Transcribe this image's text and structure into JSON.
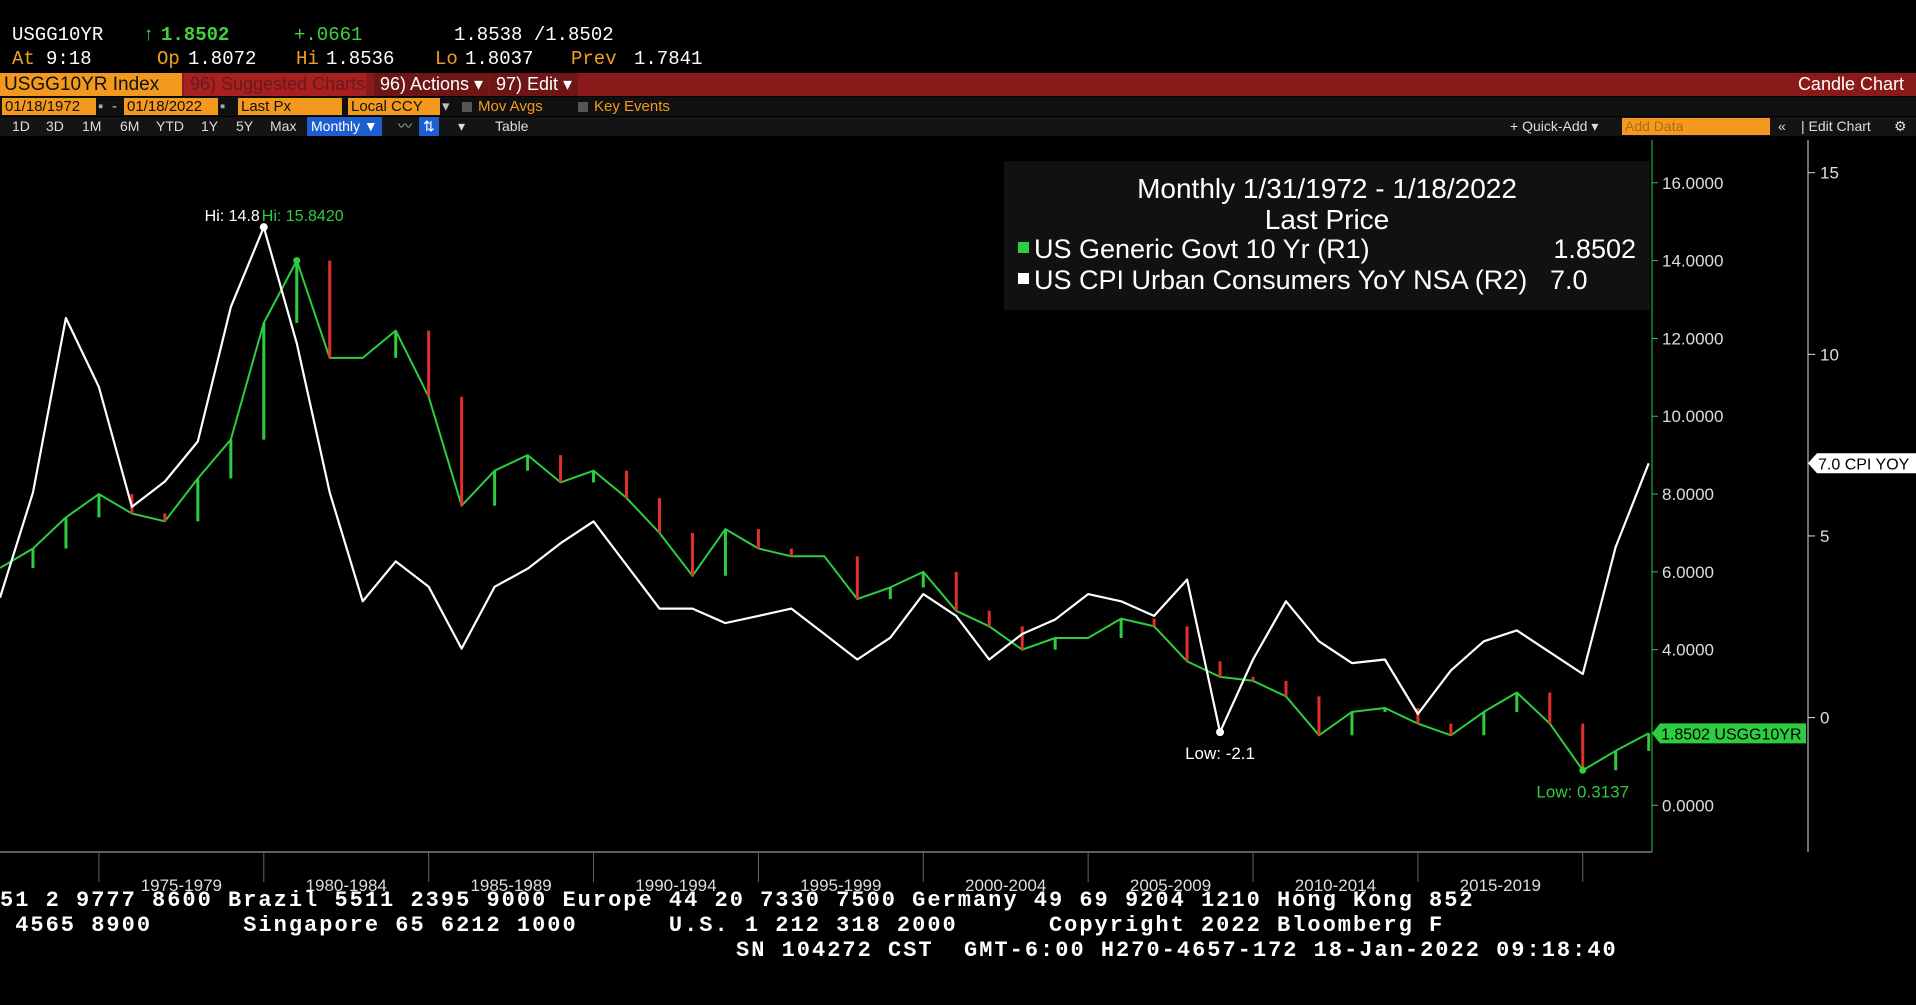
{
  "quote": {
    "ticker": "USGG10YR",
    "arrow": "↑",
    "last": "1.8502",
    "change": "+.0661",
    "bidask": "1.8538 /1.8502",
    "at_label": "At",
    "at_time": "9:18",
    "op_label": "Op",
    "op_value": "1.8072",
    "hi_label": "Hi",
    "hi_value": "1.8536",
    "lo_label": "Lo",
    "lo_value": "1.8037",
    "prev_label": "Prev",
    "prev_value": "1.7841"
  },
  "toolbar": {
    "security": "USGG10YR Index",
    "suggested": "96) Suggested Charts",
    "actions": "96) Actions ▾",
    "edit": "97) Edit ▾",
    "chart_type": "Candle Chart"
  },
  "options": {
    "start_date": "01/18/1972",
    "end_date": "01/18/2022",
    "field": "Last Px",
    "currency": "Local CCY",
    "mov_avgs": "Mov Avgs",
    "key_events": "Key Events"
  },
  "periods": {
    "items": [
      "1D",
      "3D",
      "1M",
      "6M",
      "YTD",
      "1Y",
      "5Y",
      "Max"
    ],
    "frequency": "Monthly ▼",
    "table": "Table",
    "quick_add": "+ Quick-Add ▾",
    "add_data": "Add Data",
    "edit_chart": "Edit Chart"
  },
  "legend": {
    "title": "Monthly 1/31/1972 - 1/18/2022",
    "subtitle": "Last Price",
    "rows": [
      {
        "label": "US Generic Govt 10 Yr  (R1)",
        "value": "1.8502",
        "color": "#2ecc40"
      },
      {
        "label": "US CPI Urban Consumers YoY NSA  (R2)",
        "value": "7.0",
        "color": "#ffffff"
      }
    ]
  },
  "chart_data": {
    "type": "line",
    "x": [
      1972,
      1973,
      1974,
      1975,
      1976,
      1977,
      1978,
      1979,
      1980,
      1981,
      1982,
      1983,
      1984,
      1985,
      1986,
      1987,
      1988,
      1989,
      1990,
      1991,
      1992,
      1993,
      1994,
      1995,
      1996,
      1997,
      1998,
      1999,
      2000,
      2001,
      2002,
      2003,
      2004,
      2005,
      2006,
      2007,
      2008,
      2009,
      2010,
      2011,
      2012,
      2013,
      2014,
      2015,
      2016,
      2017,
      2018,
      2019,
      2020,
      2021,
      2022
    ],
    "xlim": [
      1972,
      2022.1
    ],
    "x_ticks": [
      "1975-1979",
      "1980-1984",
      "1985-1989",
      "1990-1994",
      "1995-1999",
      "2000-2004",
      "2005-2009",
      "2010-2014",
      "2015-2019"
    ],
    "series": [
      {
        "name": "US Generic Govt 10 Yr  (R1)",
        "axis": "right1",
        "color": "#2ecc40",
        "values": [
          6.1,
          6.6,
          7.4,
          8.0,
          7.5,
          7.3,
          8.4,
          9.4,
          12.4,
          14.0,
          11.5,
          11.5,
          12.2,
          10.5,
          7.7,
          8.6,
          9.0,
          8.3,
          8.6,
          7.9,
          7.0,
          5.9,
          7.1,
          6.6,
          6.4,
          6.4,
          5.3,
          5.6,
          6.0,
          5.0,
          4.6,
          4.0,
          4.3,
          4.3,
          4.8,
          4.6,
          3.7,
          3.3,
          3.2,
          2.8,
          1.8,
          2.4,
          2.5,
          2.1,
          1.8,
          2.4,
          2.9,
          2.1,
          0.9,
          1.4,
          1.85
        ]
      },
      {
        "name": "US CPI Urban Consumers YoY NSA  (R2)",
        "axis": "right2",
        "color": "#ffffff",
        "values": [
          3.3,
          6.2,
          11.0,
          9.1,
          5.8,
          6.5,
          7.6,
          11.3,
          13.5,
          10.3,
          6.2,
          3.2,
          4.3,
          3.6,
          1.9,
          3.6,
          4.1,
          4.8,
          5.4,
          4.2,
          3.0,
          3.0,
          2.6,
          2.8,
          3.0,
          2.3,
          1.6,
          2.2,
          3.4,
          2.8,
          1.6,
          2.3,
          2.7,
          3.4,
          3.2,
          2.8,
          3.8,
          -0.4,
          1.6,
          3.2,
          2.1,
          1.5,
          1.6,
          0.1,
          1.3,
          2.1,
          2.4,
          1.8,
          1.2,
          4.7,
          7.0
        ]
      }
    ],
    "y_right1": {
      "ylim": [
        -1.2,
        17.1
      ],
      "ticks": [
        "16.0000",
        "14.0000",
        "12.0000",
        "10.0000",
        "8.0000",
        "6.0000",
        "4.0000",
        "0.0000"
      ]
    },
    "y_right2": {
      "ylim": [
        -3.7,
        15.9
      ],
      "ticks": [
        "15",
        "10",
        "5",
        "0"
      ]
    },
    "annotations": {
      "hi_cpi": "Hi: 14.8",
      "hi_yield": "Hi: 15.8420",
      "low_cpi": "Low: -2.1",
      "low_yield": "Low: 0.3137",
      "cpi_tag": "7.0 CPI YOY",
      "yield_tag": "1.8502 USGG10YR"
    }
  },
  "footer": {
    "line1": "51 2 9777 8600 Brazil 5511 2395 9000 Europe 44 20 7330 7500 Germany 49 69 9204 1210 Hong Kong 852",
    "line2": " 4565 8900      Singapore 65 6212 1000      U.S. 1 212 318 2000      Copyright 2022 Bloomberg F",
    "line3": "SN 104272 CST  GMT-6:00 H270-4657-172 18-Jan-2022 09:18:40"
  }
}
